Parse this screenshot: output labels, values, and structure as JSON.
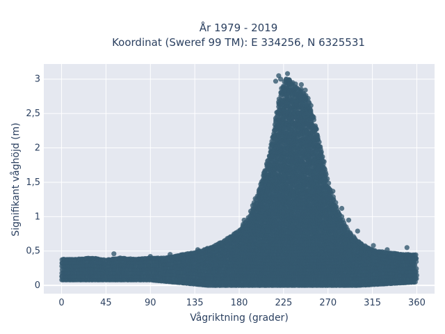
{
  "chart_data": {
    "type": "scatter",
    "title_line1": "År 1979 - 2019",
    "title_line2": "Koordinat (Sweref 99 TM): E 334256, N 6325531",
    "xlabel": "Vågriktning (grader)",
    "ylabel": "Signifikant våghöjd (m)",
    "xlim": [
      -18,
      378
    ],
    "ylim": [
      -0.12,
      3.22
    ],
    "x_ticks": [
      0,
      45,
      90,
      135,
      180,
      225,
      270,
      315,
      360
    ],
    "x_tick_labels": [
      "0",
      "45",
      "90",
      "135",
      "180",
      "225",
      "270",
      "315",
      "360"
    ],
    "y_ticks": [
      0,
      0.5,
      1,
      1.5,
      2,
      2.5,
      3
    ],
    "y_tick_labels": [
      "0",
      "0,5",
      "1",
      "1,5",
      "2",
      "2,5",
      "3"
    ],
    "grid": true,
    "marker_color": "#34596f",
    "plot_bg": "#e5e8f0",
    "envelope_upper": [
      [
        0,
        0.38
      ],
      [
        15,
        0.38
      ],
      [
        30,
        0.4
      ],
      [
        45,
        0.37
      ],
      [
        60,
        0.4
      ],
      [
        75,
        0.38
      ],
      [
        90,
        0.4
      ],
      [
        105,
        0.4
      ],
      [
        120,
        0.44
      ],
      [
        135,
        0.48
      ],
      [
        150,
        0.55
      ],
      [
        165,
        0.65
      ],
      [
        180,
        0.8
      ],
      [
        190,
        1.0
      ],
      [
        200,
        1.4
      ],
      [
        210,
        1.9
      ],
      [
        215,
        2.3
      ],
      [
        220,
        2.7
      ],
      [
        225,
        2.98
      ],
      [
        230,
        3.05
      ],
      [
        235,
        2.95
      ],
      [
        240,
        2.9
      ],
      [
        245,
        2.85
      ],
      [
        250,
        2.72
      ],
      [
        255,
        2.5
      ],
      [
        260,
        2.2
      ],
      [
        265,
        1.85
      ],
      [
        270,
        1.5
      ],
      [
        275,
        1.3
      ],
      [
        280,
        1.1
      ],
      [
        285,
        0.95
      ],
      [
        290,
        0.8
      ],
      [
        300,
        0.65
      ],
      [
        310,
        0.55
      ],
      [
        320,
        0.5
      ],
      [
        330,
        0.48
      ],
      [
        345,
        0.45
      ],
      [
        360,
        0.45
      ]
    ],
    "envelope_lower": [
      [
        0,
        0.08
      ],
      [
        90,
        0.08
      ],
      [
        150,
        0.0
      ],
      [
        300,
        0.0
      ],
      [
        360,
        0.05
      ]
    ],
    "outliers": [
      [
        53,
        0.46
      ],
      [
        90,
        0.42
      ],
      [
        110,
        0.45
      ],
      [
        138,
        0.52
      ],
      [
        152,
        0.55
      ],
      [
        168,
        0.62
      ],
      [
        185,
        0.95
      ],
      [
        217,
        2.97
      ],
      [
        220,
        3.05
      ],
      [
        222,
        3.0
      ],
      [
        229,
        3.08
      ],
      [
        231,
        2.98
      ],
      [
        237,
        2.93
      ],
      [
        243,
        2.92
      ],
      [
        247,
        2.84
      ],
      [
        251,
        2.65
      ],
      [
        258,
        2.28
      ],
      [
        263,
        1.92
      ],
      [
        266,
        1.8
      ],
      [
        275,
        1.37
      ],
      [
        284,
        1.12
      ],
      [
        291,
        0.95
      ],
      [
        300,
        0.79
      ],
      [
        316,
        0.58
      ],
      [
        330,
        0.52
      ],
      [
        350,
        0.55
      ]
    ]
  }
}
